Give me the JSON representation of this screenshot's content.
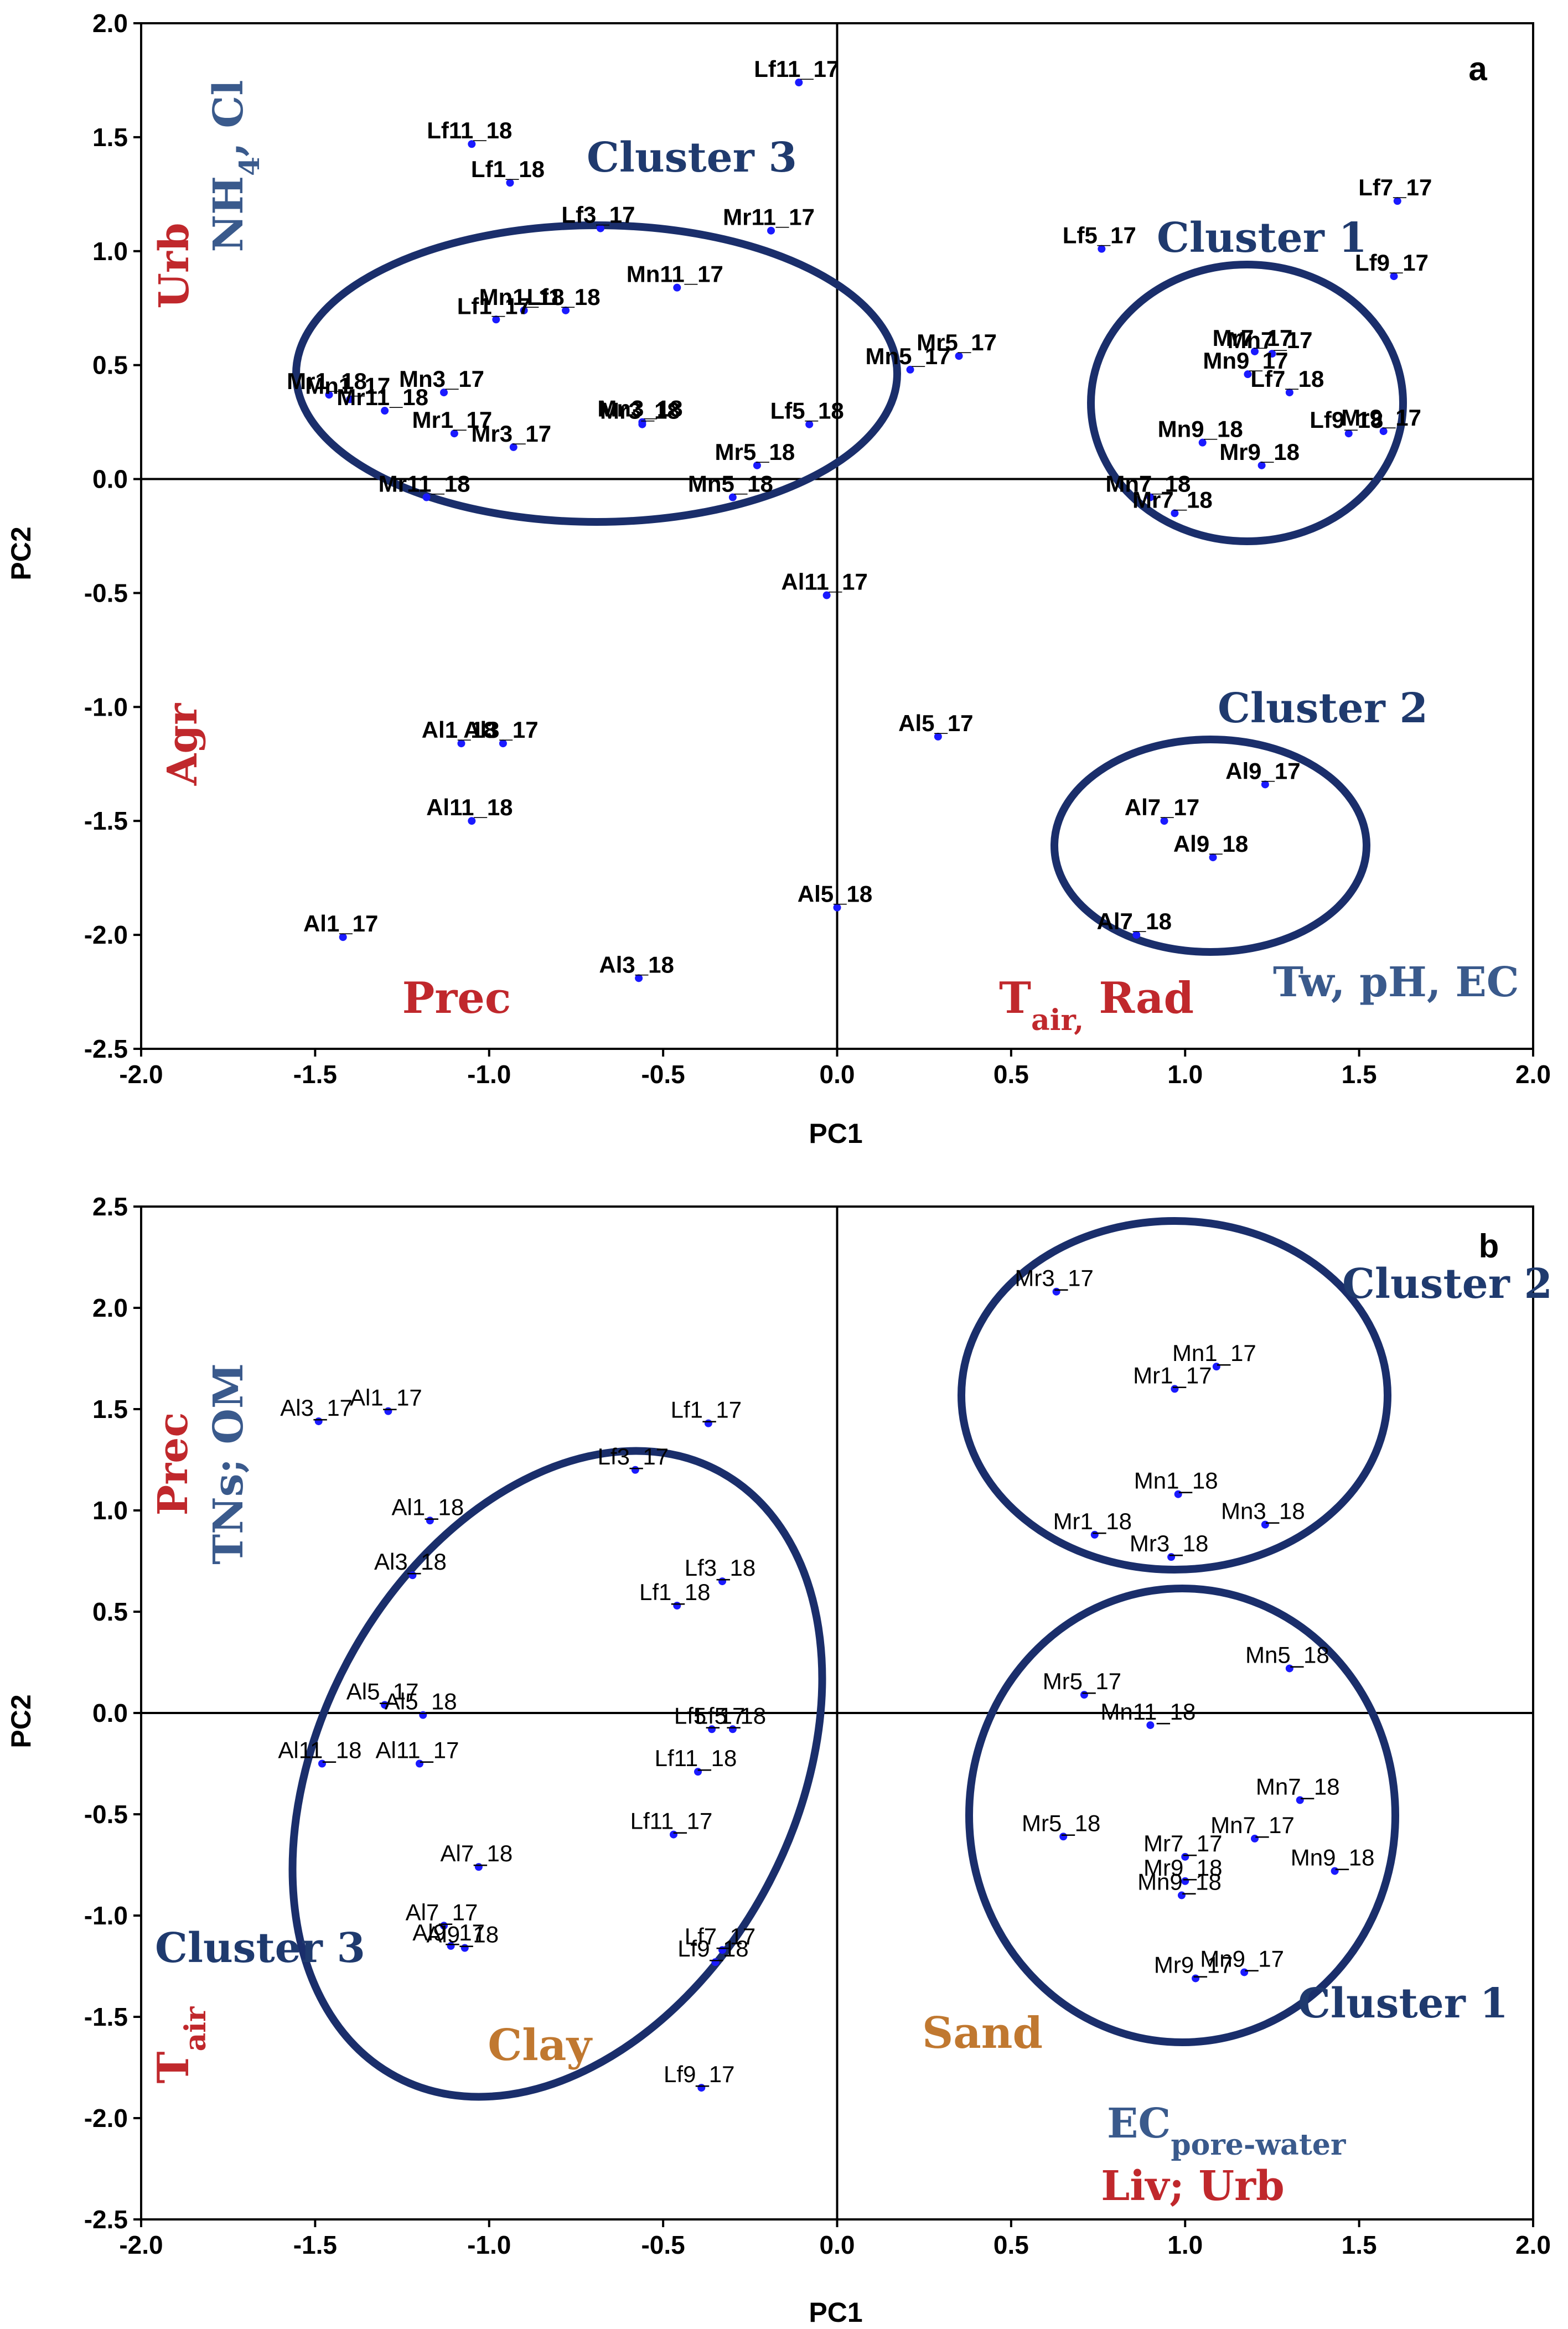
{
  "chart_data": [
    {
      "type": "scatter",
      "panel": "a",
      "xlabel": "PC1",
      "ylabel": "PC2",
      "xlim": [
        -2.0,
        2.0
      ],
      "ylim": [
        -2.5,
        2.0
      ],
      "xticks": [
        "-2.0",
        "-1.5",
        "-1.0",
        "-0.5",
        "0.0",
        "0.5",
        "1.0",
        "1.5",
        "2.0"
      ],
      "yticks": [
        "2.0",
        "1.5",
        "1.0",
        "0.5",
        "0.0",
        "-0.5",
        "-1.0",
        "-1.5",
        "-2.0",
        "-2.5"
      ],
      "points": [
        {
          "label": "Lf11_17",
          "x": -0.11,
          "y": 1.74
        },
        {
          "label": "Lf11_18",
          "x": -1.05,
          "y": 1.47
        },
        {
          "label": "Lf1_18",
          "x": -0.94,
          "y": 1.3
        },
        {
          "label": "Lf3_17",
          "x": -0.68,
          "y": 1.1
        },
        {
          "label": "Mr11_17",
          "x": -0.19,
          "y": 1.09
        },
        {
          "label": "Lf5_17",
          "x": 0.76,
          "y": 1.01
        },
        {
          "label": "Lf7_17",
          "x": 1.61,
          "y": 1.22
        },
        {
          "label": "Lf9_17",
          "x": 1.6,
          "y": 0.89
        },
        {
          "label": "Mn11_17",
          "x": -0.46,
          "y": 0.84
        },
        {
          "label": "Lf1_18",
          "x": -0.78,
          "y": 0.74
        },
        {
          "label": "Mn1_18",
          "x": -0.9,
          "y": 0.74
        },
        {
          "label": "Lf1_17",
          "x": -0.98,
          "y": 0.7
        },
        {
          "label": "Mr5_17",
          "x": 0.35,
          "y": 0.54
        },
        {
          "label": "Mn5_17",
          "x": 0.21,
          "y": 0.48
        },
        {
          "label": "Mr7_17",
          "x": 1.2,
          "y": 0.56
        },
        {
          "label": "Mn7_17",
          "x": 1.25,
          "y": 0.55
        },
        {
          "label": "Mn9_17",
          "x": 1.18,
          "y": 0.46
        },
        {
          "label": "Lf7_18",
          "x": 1.3,
          "y": 0.38
        },
        {
          "label": "Mr1_18",
          "x": -1.46,
          "y": 0.37
        },
        {
          "label": "Mn1_17",
          "x": -1.4,
          "y": 0.35
        },
        {
          "label": "Mr11_18",
          "x": -1.3,
          "y": 0.3
        },
        {
          "label": "Mn3_17",
          "x": -1.13,
          "y": 0.38
        },
        {
          "label": "Mr1_17",
          "x": -1.1,
          "y": 0.2
        },
        {
          "label": "Mr3_17",
          "x": -0.93,
          "y": 0.14
        },
        {
          "label": "Mn3_18",
          "x": -0.56,
          "y": 0.25
        },
        {
          "label": "Mr3_18",
          "x": -0.56,
          "y": 0.24
        },
        {
          "label": "Lf5_18",
          "x": -0.08,
          "y": 0.24
        },
        {
          "label": "Mr5_18",
          "x": -0.23,
          "y": 0.06
        },
        {
          "label": "Mn5_18",
          "x": -0.3,
          "y": -0.08
        },
        {
          "label": "Mr11_18",
          "x": -1.18,
          "y": -0.08
        },
        {
          "label": "Mn9_18",
          "x": 1.05,
          "y": 0.16
        },
        {
          "label": "Mr9_18",
          "x": 1.22,
          "y": 0.06
        },
        {
          "label": "Lf9_18",
          "x": 1.47,
          "y": 0.2
        },
        {
          "label": "Mr9_17",
          "x": 1.57,
          "y": 0.21
        },
        {
          "label": "Mn7_18",
          "x": 0.9,
          "y": -0.08
        },
        {
          "label": "Mr7_18",
          "x": 0.97,
          "y": -0.15
        },
        {
          "label": "Al11_17",
          "x": -0.03,
          "y": -0.51
        },
        {
          "label": "Al5_17",
          "x": 0.29,
          "y": -1.13
        },
        {
          "label": "Al1_18",
          "x": -1.08,
          "y": -1.16
        },
        {
          "label": "Al3_17",
          "x": -0.96,
          "y": -1.16
        },
        {
          "label": "Al11_18",
          "x": -1.05,
          "y": -1.5
        },
        {
          "label": "Al9_17",
          "x": 1.23,
          "y": -1.34
        },
        {
          "label": "Al7_17",
          "x": 0.94,
          "y": -1.5
        },
        {
          "label": "Al9_18",
          "x": 1.08,
          "y": -1.66
        },
        {
          "label": "Al7_18",
          "x": 0.86,
          "y": -2.0
        },
        {
          "label": "Al1_17",
          "x": -1.42,
          "y": -2.01
        },
        {
          "label": "Al5_18",
          "x": 0.0,
          "y": -1.88
        },
        {
          "label": "Al3_18",
          "x": -0.57,
          "y": -2.19
        }
      ],
      "clusters": [
        {
          "label": "Cluster 1"
        },
        {
          "label": "Cluster 2"
        },
        {
          "label": "Cluster 3"
        }
      ],
      "annotations": {
        "nh4_main": "NH",
        "nh4_sub": "4",
        "nh4_tail": ", Cl",
        "urb": "Urb",
        "agr": "Agr",
        "prec": "Prec",
        "tair_main": "T",
        "tair_sub": "air,",
        "tair_tail": " Rad",
        "tw": "Tw, pH, EC"
      }
    },
    {
      "type": "scatter",
      "panel": "b",
      "xlabel": "PC1",
      "ylabel": "PC2",
      "xlim": [
        -2.0,
        2.0
      ],
      "ylim": [
        -2.5,
        2.5
      ],
      "xticks": [
        "-2.0",
        "-1.5",
        "-1.0",
        "-0.5",
        "0.0",
        "0.5",
        "1.0",
        "1.5",
        "2.0"
      ],
      "yticks": [
        "2.5",
        "2.0",
        "1.5",
        "1.0",
        "0.5",
        "0.0",
        "-0.5",
        "-1.0",
        "-1.5",
        "-2.0",
        "-2.5"
      ],
      "points": [
        {
          "label": "Mr3_17",
          "x": 0.63,
          "y": 2.08
        },
        {
          "label": "Mn1_17",
          "x": 1.09,
          "y": 1.71
        },
        {
          "label": "Mr1_17",
          "x": 0.97,
          "y": 1.6
        },
        {
          "label": "Mn1_18",
          "x": 0.98,
          "y": 1.08
        },
        {
          "label": "Mr1_18",
          "x": 0.74,
          "y": 0.88
        },
        {
          "label": "Mn3_18",
          "x": 1.23,
          "y": 0.93
        },
        {
          "label": "Mr3_18",
          "x": 0.96,
          "y": 0.77
        },
        {
          "label": "Mn5_18",
          "x": 1.3,
          "y": 0.22
        },
        {
          "label": "Mr5_17",
          "x": 0.71,
          "y": 0.09
        },
        {
          "label": "Mn11_18",
          "x": 0.9,
          "y": -0.06
        },
        {
          "label": "Mn7_18",
          "x": 1.33,
          "y": -0.43
        },
        {
          "label": "Mr5_18",
          "x": 0.65,
          "y": -0.61
        },
        {
          "label": "Mr7_17",
          "x": 1.0,
          "y": -0.71
        },
        {
          "label": "Mn7_17",
          "x": 1.2,
          "y": -0.62
        },
        {
          "label": "Mr9_18",
          "x": 1.0,
          "y": -0.83
        },
        {
          "label": "Mn9_18",
          "x": 1.43,
          "y": -0.78
        },
        {
          "label": "Mn9_18",
          "x": 0.99,
          "y": -0.9
        },
        {
          "label": "Mr9_17",
          "x": 1.03,
          "y": -1.31
        },
        {
          "label": "Mn9_17",
          "x": 1.17,
          "y": -1.28
        },
        {
          "label": "Al3_17",
          "x": -1.49,
          "y": 1.44
        },
        {
          "label": "Al1_17",
          "x": -1.29,
          "y": 1.49
        },
        {
          "label": "Lf1_17",
          "x": -0.37,
          "y": 1.43
        },
        {
          "label": "Lf3_17",
          "x": -0.58,
          "y": 1.2
        },
        {
          "label": "Al1_18",
          "x": -1.17,
          "y": 0.95
        },
        {
          "label": "Al3_18",
          "x": -1.22,
          "y": 0.68
        },
        {
          "label": "Lf3_18",
          "x": -0.33,
          "y": 0.65
        },
        {
          "label": "Lf1_18",
          "x": -0.46,
          "y": 0.53
        },
        {
          "label": "Al5_17",
          "x": -1.3,
          "y": 0.04
        },
        {
          "label": "Al5_18",
          "x": -1.19,
          "y": -0.01
        },
        {
          "label": "Lf5_17",
          "x": -0.36,
          "y": -0.08
        },
        {
          "label": "Lf5_18",
          "x": -0.3,
          "y": -0.08
        },
        {
          "label": "Al11_18",
          "x": -1.48,
          "y": -0.25
        },
        {
          "label": "Al11_17",
          "x": -1.2,
          "y": -0.25
        },
        {
          "label": "Lf11_18",
          "x": -0.4,
          "y": -0.29
        },
        {
          "label": "Lf11_17",
          "x": -0.47,
          "y": -0.6
        },
        {
          "label": "Al7_18",
          "x": -1.03,
          "y": -0.76
        },
        {
          "label": "Al7_17",
          "x": -1.13,
          "y": -1.05
        },
        {
          "label": "Al9_17",
          "x": -1.11,
          "y": -1.15
        },
        {
          "label": "Al9_18",
          "x": -1.07,
          "y": -1.16
        },
        {
          "label": "Lf7_17",
          "x": -0.33,
          "y": -1.17
        },
        {
          "label": "Lf9_18",
          "x": -0.35,
          "y": -1.23
        },
        {
          "label": "Lf9_17",
          "x": -0.39,
          "y": -1.85
        }
      ],
      "clusters": [
        {
          "label": "Cluster 2"
        },
        {
          "label": "Cluster 1"
        },
        {
          "label": "Cluster 3"
        }
      ],
      "annotations": {
        "prec": "Prec",
        "tns": "TNs; OM",
        "tair_main": "T",
        "tair_sub": "air",
        "clay": "Clay",
        "sand": "Sand",
        "ec_main": "EC",
        "ec_sub": "pore-water",
        "liv": "Liv; Urb"
      }
    }
  ],
  "colors": {
    "point": "#1a1aff",
    "ellipse": "#1a2e6b",
    "cluster_text": "#1f3a6e",
    "red_text": "#c0282c",
    "blue_text": "#3a5a8c",
    "orange_text": "#c07830"
  }
}
